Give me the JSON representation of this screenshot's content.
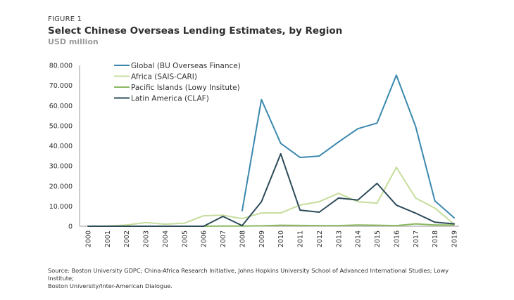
{
  "figure_label": "FIGURE 1",
  "title": "Select Chinese Overseas Lending Estimates, by Region",
  "subtitle": "USD million",
  "source_line1": "Source: Boston University GDPC; China-Africa Research Initiative, Johns Hopkins University School of Advanced International Studies; Lowy Institute;",
  "source_line2": "Boston University/Inter-American Dialogue.",
  "chart_data": {
    "type": "line",
    "title": "Select Chinese Overseas Lending Estimates, by Region",
    "ylabel": "USD million",
    "xlabel": "",
    "ylim": [
      0,
      80000
    ],
    "yticks": [
      0,
      10000,
      20000,
      30000,
      40000,
      50000,
      60000,
      70000,
      80000
    ],
    "ytick_labels": [
      "0",
      "10.000",
      "20.000",
      "30.000",
      "40.000",
      "50.000",
      "60.000",
      "70.000",
      "80.000"
    ],
    "x": [
      "2000",
      "2001",
      "2002",
      "2003",
      "2004",
      "2005",
      "2006",
      "2007",
      "2008",
      "2009",
      "2010",
      "2011",
      "2012",
      "2013",
      "2014",
      "2015",
      "2016",
      "2017",
      "2018",
      "2019"
    ],
    "grid": false,
    "legend_position": "top-left",
    "series": [
      {
        "name": "Global (BU Overseas Finance)",
        "color": "#3b88ae",
        "values": [
          null,
          null,
          null,
          null,
          null,
          null,
          null,
          null,
          7700,
          63000,
          41200,
          34200,
          34900,
          41900,
          48500,
          51300,
          75100,
          49600,
          12600,
          4200
        ]
      },
      {
        "name": "Africa (SAIS-CARI)",
        "color": "#c6dd9c",
        "values": [
          0,
          100,
          600,
          1800,
          1000,
          1500,
          5200,
          5500,
          3800,
          6600,
          6600,
          10500,
          12200,
          16400,
          12200,
          11500,
          29300,
          14000,
          9000,
          1000
        ]
      },
      {
        "name": "Pacific Islands (Lowy Insitute)",
        "color": "#8cb960",
        "values": [
          0,
          0,
          0,
          0,
          0,
          0,
          0,
          100,
          100,
          200,
          500,
          400,
          300,
          300,
          600,
          500,
          300,
          1200,
          600,
          600
        ]
      },
      {
        "name": "Latin America (CLAF)",
        "color": "#2d4b5a",
        "values": [
          0,
          0,
          0,
          0,
          0,
          0,
          0,
          4900,
          300,
          12200,
          36000,
          8000,
          7000,
          14000,
          13000,
          21300,
          10500,
          6500,
          2000,
          1200
        ]
      }
    ]
  }
}
